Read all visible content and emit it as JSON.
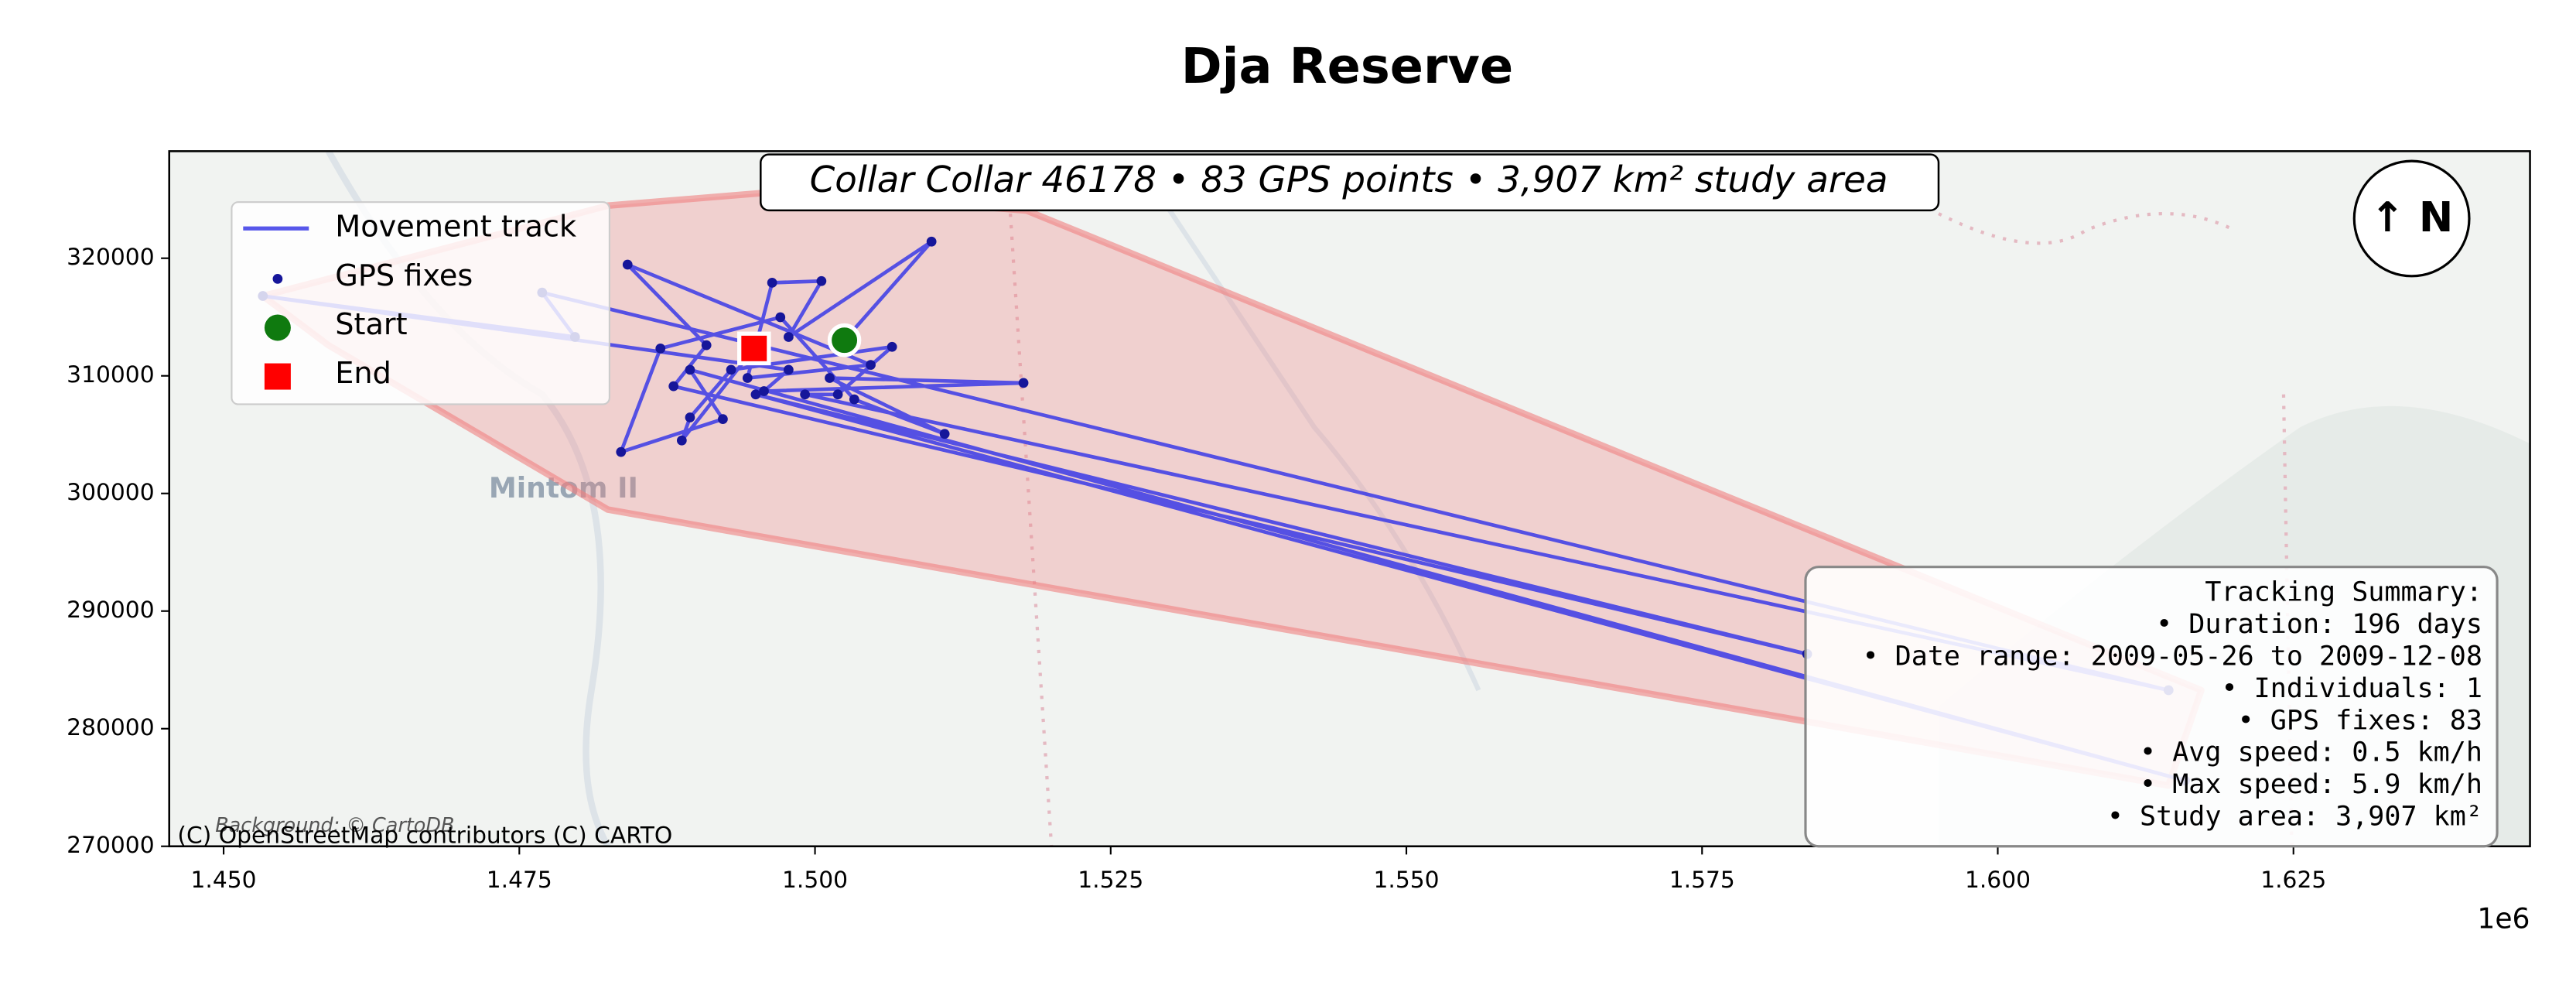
{
  "chart_data": {
    "type": "line",
    "title": "Dja Reserve",
    "annotation": "Collar Collar 46178 • 83 GPS points • 3,907 km² study area",
    "north_label": "↑ N",
    "x_offset_label": "1e6",
    "attribution": "(C) OpenStreetMap contributors (C) CARTO",
    "background_credit": "Background: © CartoDB",
    "place_labels": [
      "Mintom II"
    ],
    "summary": [
      "Tracking Summary:",
      "• Duration: 196 days",
      "• Date range: 2009-05-26 to 2009-12-08",
      "• Individuals: 1",
      "• GPS fixes: 83",
      "• Avg speed: 0.5 km/h",
      "• Max speed: 5.9 km/h",
      "• Study area: 3,907 km²"
    ],
    "xlim": [
      1445400,
      1645000
    ],
    "ylim": [
      270000,
      329100
    ],
    "xticks": [
      {
        "value": 1450000,
        "label": "1.450"
      },
      {
        "value": 1475000,
        "label": "1.475"
      },
      {
        "value": 1500000,
        "label": "1.500"
      },
      {
        "value": 1525000,
        "label": "1.525"
      },
      {
        "value": 1550000,
        "label": "1.550"
      },
      {
        "value": 1575000,
        "label": "1.575"
      },
      {
        "value": 1600000,
        "label": "1.600"
      },
      {
        "value": 1625000,
        "label": "1.625"
      }
    ],
    "yticks": [
      270000,
      280000,
      290000,
      300000,
      310000,
      320000
    ],
    "legend": "upper left",
    "study_area": {
      "color": "#f08080",
      "x": [
        1453317,
        1482483,
        1497761,
        1517900,
        1617206,
        1614428,
        1482483,
        1458872
      ],
      "values": [
        316788,
        324469,
        325726,
        324050,
        283268,
        275168,
        298631,
        312598
      ]
    },
    "series": [
      {
        "name": "Movement track",
        "color": "#3a3ae6",
        "marker": "line",
        "x": [
          1502488,
          1509850,
          1497765,
          1500543,
          1496376,
          1494293,
          1504710,
          1484153,
          1490820,
          1488042,
          1583883,
          1494987,
          1615830,
          1489431,
          1492209,
          1483598,
          1486931,
          1497071,
          1503321,
          1510961,
          1501238,
          1517628,
          1495682,
          1497765,
          1453317,
          1479708,
          1476930,
          1614441,
          1499154,
          1501932,
          1506516,
          1492904,
          1489431,
          1488737,
          1494848
        ],
        "values": [
          313028,
          321410,
          313307,
          318057,
          317917,
          309815,
          310932,
          319454,
          312609,
          309116,
          286345,
          308418,
          275588,
          310513,
          306322,
          303528,
          312329,
          314983,
          307998,
          305065,
          309815,
          309395,
          308697,
          310513,
          316788,
          313307,
          317079,
          283272,
          308418,
          308418,
          312469,
          310513,
          306462,
          304506,
          312329
        ]
      },
      {
        "name": "GPS fixes",
        "color": "#16169a",
        "marker": "dot",
        "x": [
          1502488,
          1509850,
          1497765,
          1500543,
          1496376,
          1494293,
          1504710,
          1484153,
          1490820,
          1488042,
          1583883,
          1494987,
          1615830,
          1489431,
          1492209,
          1483598,
          1486931,
          1497071,
          1503321,
          1510961,
          1501238,
          1517628,
          1495682,
          1497765,
          1453317,
          1479708,
          1476930,
          1614441,
          1499154,
          1501932,
          1506516,
          1492904,
          1489431,
          1488737,
          1494848
        ],
        "values": [
          313028,
          321410,
          313307,
          318057,
          317917,
          309815,
          310932,
          319454,
          312609,
          309116,
          286345,
          308418,
          275588,
          310513,
          306322,
          303528,
          312329,
          314983,
          307998,
          305065,
          309815,
          309395,
          308697,
          310513,
          316788,
          313307,
          317079,
          283272,
          308418,
          308418,
          312469,
          310513,
          306462,
          304506,
          312329
        ]
      },
      {
        "name": "Start",
        "color": "#0f7a0f",
        "marker": "circle",
        "x": [
          1502488
        ],
        "values": [
          313028
        ]
      },
      {
        "name": "End",
        "color": "#ff0000",
        "marker": "square",
        "x": [
          1494848
        ],
        "values": [
          312329
        ]
      }
    ]
  }
}
